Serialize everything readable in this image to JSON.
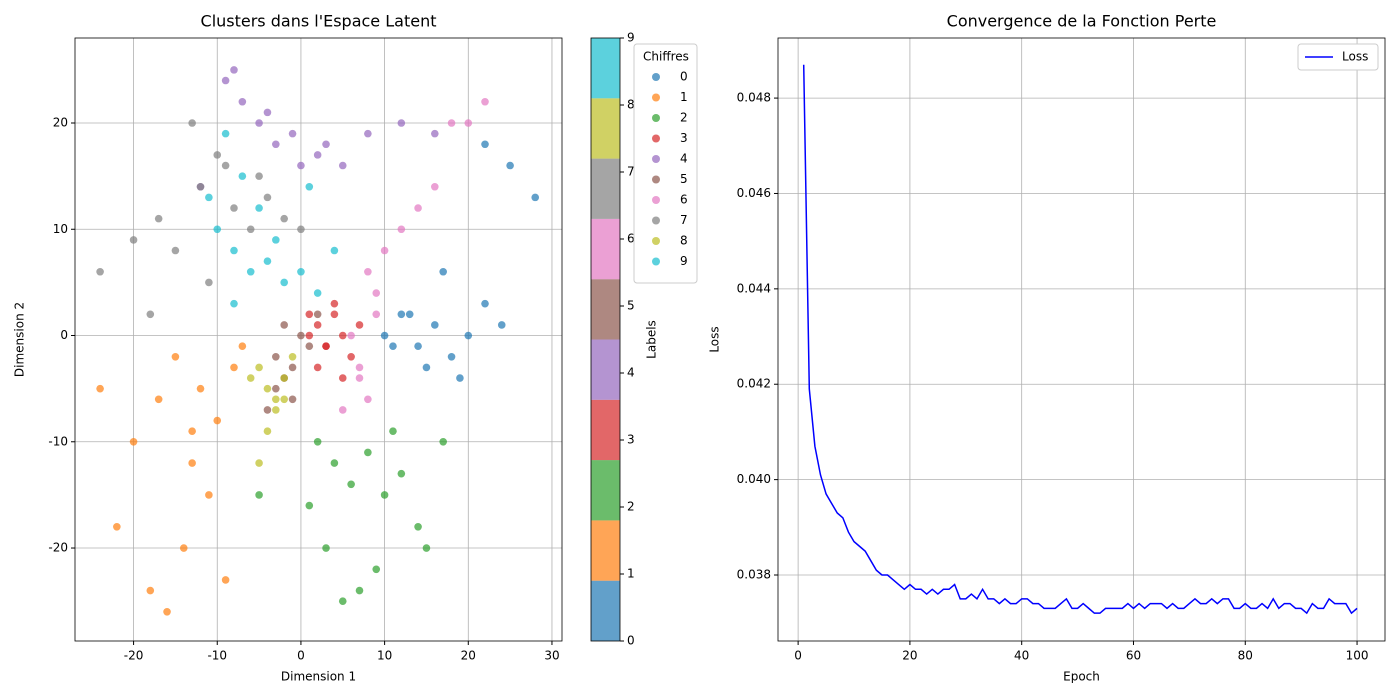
{
  "chart_data": [
    {
      "type": "scatter",
      "title": "Clusters dans l'Espace Latent",
      "x_label": "Dimension 1",
      "y_label": "Dimension 2",
      "xlim": [
        -27,
        31.2
      ],
      "ylim": [
        -28.75,
        28
      ],
      "xticks": [
        -20,
        -10,
        0,
        10,
        20,
        30
      ],
      "yticks": [
        -20,
        -10,
        0,
        10,
        20
      ],
      "grid": true,
      "legend": "upper right",
      "legend_title": "Chiffres",
      "colorbar": {
        "label": "Labels",
        "lim": [
          0,
          9
        ],
        "ticks": [
          0,
          1,
          2,
          3,
          4,
          5,
          6,
          7,
          8,
          9
        ]
      },
      "series": [
        {
          "name": "0",
          "color": "#1f77b4",
          "x": [
            10,
            12,
            14,
            16,
            18,
            20,
            22,
            24,
            15,
            11,
            13,
            19,
            25,
            28,
            22,
            17
          ],
          "y": [
            0,
            2,
            -1,
            1,
            -2,
            0,
            3,
            1,
            -3,
            -1,
            2,
            -4,
            16,
            13,
            18,
            6
          ]
        },
        {
          "name": "1",
          "color": "#ff7f0e",
          "x": [
            -15,
            -12,
            -10,
            -17,
            -13,
            -8,
            -20,
            -22,
            -14,
            -18,
            -11,
            -9,
            -16,
            -24,
            -7,
            -13
          ],
          "y": [
            -2,
            -5,
            -8,
            -6,
            -12,
            -3,
            -10,
            -18,
            -20,
            -24,
            -15,
            -23,
            -26,
            -5,
            -1,
            -9
          ]
        },
        {
          "name": "2",
          "color": "#2ca02c",
          "x": [
            2,
            4,
            6,
            8,
            10,
            12,
            3,
            5,
            9,
            14,
            17,
            1,
            7,
            11,
            -5,
            15
          ],
          "y": [
            -10,
            -12,
            -14,
            -11,
            -15,
            -13,
            -20,
            -25,
            -22,
            -18,
            -10,
            -16,
            -24,
            -9,
            -15,
            -20
          ]
        },
        {
          "name": "3",
          "color": "#d62728",
          "x": [
            1,
            2,
            3,
            4,
            5,
            6,
            2,
            4,
            3,
            1,
            7,
            5
          ],
          "y": [
            0,
            1,
            -1,
            2,
            0,
            -2,
            -3,
            3,
            -1,
            2,
            1,
            -4
          ]
        },
        {
          "name": "4",
          "color": "#9467bd",
          "x": [
            -9,
            -7,
            -5,
            -3,
            -1,
            2,
            5,
            8,
            12,
            16,
            -12,
            -8,
            -4,
            0,
            3
          ],
          "y": [
            24,
            22,
            20,
            18,
            19,
            17,
            16,
            19,
            20,
            19,
            14,
            25,
            21,
            16,
            18
          ]
        },
        {
          "name": "5",
          "color": "#8c564b",
          "x": [
            -3,
            -2,
            -1,
            0,
            -4,
            -2,
            1,
            -3,
            2,
            -1
          ],
          "y": [
            -2,
            -4,
            -6,
            0,
            -7,
            1,
            -1,
            -5,
            2,
            -3
          ]
        },
        {
          "name": "6",
          "color": "#e377c2",
          "x": [
            6,
            7,
            8,
            9,
            10,
            12,
            14,
            16,
            18,
            20,
            22,
            8,
            7,
            9,
            5
          ],
          "y": [
            0,
            -3,
            -6,
            4,
            8,
            10,
            12,
            14,
            20,
            20,
            22,
            6,
            -4,
            2,
            -7
          ]
        },
        {
          "name": "7",
          "color": "#7f7f7f",
          "x": [
            -24,
            -20,
            -18,
            -15,
            -12,
            -10,
            -8,
            -6,
            -4,
            -2,
            0,
            -13,
            -9,
            -5,
            -17,
            -11
          ],
          "y": [
            6,
            9,
            2,
            8,
            14,
            17,
            12,
            10,
            13,
            11,
            10,
            20,
            16,
            15,
            11,
            5
          ]
        },
        {
          "name": "8",
          "color": "#bcbd22",
          "x": [
            -5,
            -4,
            -3,
            -2,
            -1,
            -4,
            -3,
            -5,
            -2,
            -6
          ],
          "y": [
            -3,
            -5,
            -7,
            -4,
            -2,
            -9,
            -6,
            -12,
            -6,
            -4
          ]
        },
        {
          "name": "9",
          "color": "#17becf",
          "x": [
            -10,
            -8,
            -6,
            -4,
            -2,
            0,
            2,
            -9,
            -7,
            -5,
            -3,
            -11,
            -8,
            1,
            4
          ],
          "y": [
            10,
            8,
            6,
            7,
            5,
            6,
            4,
            19,
            15,
            12,
            9,
            13,
            3,
            14,
            8
          ]
        }
      ]
    },
    {
      "type": "line",
      "title": "Convergence de la Fonction Perte",
      "x_label": "Epoch",
      "y_label": "Loss",
      "xlim": [
        -3.6,
        105
      ],
      "ylim": [
        0.036616,
        0.04926
      ],
      "xticks": [
        0,
        20,
        40,
        60,
        80,
        100
      ],
      "yticks": [
        0.038,
        {
          "value": 0.04,
          "label": "0.040"
        },
        0.042,
        0.044,
        0.046,
        0.048
      ],
      "grid": true,
      "legend": "upper right",
      "x": [
        1,
        2,
        3,
        4,
        5,
        6,
        7,
        8,
        9,
        10,
        11,
        12,
        13,
        14,
        15,
        16,
        17,
        18,
        19,
        20,
        21,
        22,
        23,
        24,
        25,
        26,
        27,
        28,
        29,
        30,
        31,
        32,
        33,
        34,
        35,
        36,
        37,
        38,
        39,
        40,
        41,
        42,
        43,
        44,
        45,
        46,
        47,
        48,
        49,
        50,
        51,
        52,
        53,
        54,
        55,
        56,
        57,
        58,
        59,
        60,
        61,
        62,
        63,
        64,
        65,
        66,
        67,
        68,
        69,
        70,
        71,
        72,
        73,
        74,
        75,
        76,
        77,
        78,
        79,
        80,
        81,
        82,
        83,
        84,
        85,
        86,
        87,
        88,
        89,
        90,
        91,
        92,
        93,
        94,
        95,
        96,
        97,
        98,
        99,
        100
      ],
      "series": [
        {
          "name": "Loss",
          "color": "#0000ff",
          "values": [
            0.0487,
            0.0419,
            0.0407,
            0.0401,
            0.0397,
            0.0395,
            0.0393,
            0.0392,
            0.0389,
            0.0387,
            0.0386,
            0.0385,
            0.0383,
            0.0381,
            0.038,
            0.038,
            0.0379,
            0.0378,
            0.0377,
            0.0378,
            0.0377,
            0.0377,
            0.0376,
            0.0377,
            0.0376,
            0.0377,
            0.0377,
            0.0378,
            0.0375,
            0.0375,
            0.0376,
            0.0375,
            0.0377,
            0.0375,
            0.0375,
            0.0374,
            0.0375,
            0.0374,
            0.0374,
            0.0375,
            0.0375,
            0.0374,
            0.0374,
            0.0373,
            0.0373,
            0.0373,
            0.0374,
            0.0375,
            0.0373,
            0.0373,
            0.0374,
            0.0373,
            0.0372,
            0.0372,
            0.0373,
            0.0373,
            0.0373,
            0.0373,
            0.0374,
            0.0373,
            0.0374,
            0.0373,
            0.0374,
            0.0374,
            0.0374,
            0.0373,
            0.0374,
            0.0373,
            0.0373,
            0.0374,
            0.0375,
            0.0374,
            0.0374,
            0.0375,
            0.0374,
            0.0375,
            0.0375,
            0.0373,
            0.0373,
            0.0374,
            0.0373,
            0.0373,
            0.0374,
            0.0373,
            0.0375,
            0.0373,
            0.0374,
            0.0374,
            0.0373,
            0.0373,
            0.0372,
            0.0374,
            0.0373,
            0.0373,
            0.0375,
            0.0374,
            0.0374,
            0.0374,
            0.0372,
            0.0373
          ]
        }
      ]
    }
  ]
}
